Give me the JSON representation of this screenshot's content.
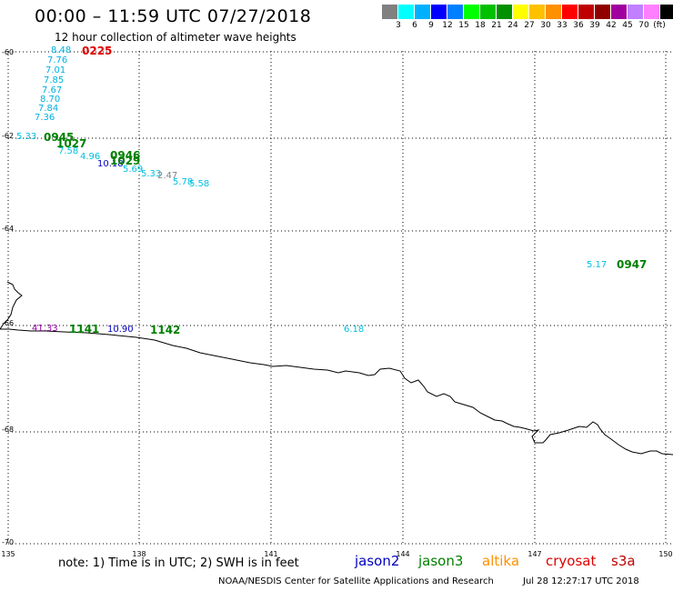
{
  "title": "00:00 – 11:59 UTC 07/27/2018",
  "subtitle": "12 hour collection of altimeter wave heights",
  "legend": {
    "unit": "(ft)",
    "colors": [
      "#808080",
      "#00ffff",
      "#00b0ff",
      "#0000ff",
      "#0080ff",
      "#00ff00",
      "#00c000",
      "#009000",
      "#ffff00",
      "#ffc000",
      "#ff9000",
      "#ff0000",
      "#c00000",
      "#900000",
      "#a000a0",
      "#c080ff",
      "#ff80ff",
      "#000000"
    ],
    "labels": [
      "3",
      "6",
      "9",
      "12",
      "15",
      "18",
      "21",
      "24",
      "27",
      "30",
      "33",
      "36",
      "39",
      "42",
      "45",
      "70"
    ]
  },
  "latitudes": [
    "-60",
    "-62",
    "-64",
    "-66",
    "-68",
    "-70"
  ],
  "longitudes": [
    "135",
    "138",
    "141",
    "144",
    "147",
    "150"
  ],
  "observations": [
    {
      "text": "8.48",
      "color": "#00b0e0"
    },
    {
      "text": "7.76",
      "color": "#00b0e0"
    },
    {
      "text": "7.01",
      "color": "#00b0e0"
    },
    {
      "text": "7.85",
      "color": "#00b0e0"
    },
    {
      "text": "7.67",
      "color": "#00b0e0"
    },
    {
      "text": "8.70",
      "color": "#00b0e0"
    },
    {
      "text": "7.84",
      "color": "#00b0e0"
    },
    {
      "text": "7.36",
      "color": "#00b0e0"
    },
    {
      "text": "5.33",
      "color": "#00c0e0"
    },
    {
      "text": "5.78",
      "color": "#00c0e0"
    },
    {
      "text": "5.58",
      "color": "#00c0e0"
    },
    {
      "text": "5.33",
      "color": "#00c0e0"
    },
    {
      "text": "2.47",
      "color": "#808080"
    },
    {
      "text": "10.18",
      "color": "#0000c0"
    },
    {
      "text": "4.96",
      "color": "#00c0e0"
    },
    {
      "text": "5.69",
      "color": "#00c0e0"
    },
    {
      "text": "7.58",
      "color": "#00c0e0"
    },
    {
      "text": "41.33",
      "color": "#9000a0"
    },
    {
      "text": "10.90",
      "color": "#0000c0"
    },
    {
      "text": "5.17",
      "color": "#00c0e0"
    },
    {
      "text": "6.18",
      "color": "#00c0e0"
    }
  ],
  "times": [
    {
      "text": "0225",
      "color": "#e00000"
    },
    {
      "text": "0945",
      "color": "#008000"
    },
    {
      "text": "1027",
      "color": "#008000"
    },
    {
      "text": "0946",
      "color": "#008000"
    },
    {
      "text": "1029",
      "color": "#008000"
    },
    {
      "text": "1141",
      "color": "#008000"
    },
    {
      "text": "1142",
      "color": "#008000"
    },
    {
      "text": "0947",
      "color": "#008000"
    }
  ],
  "note": "note:  1) Time is in UTC;  2) SWH is in feet",
  "satellites": [
    {
      "name": "jason2",
      "color": "#0000c0"
    },
    {
      "name": "jason3",
      "color": "#008000"
    },
    {
      "name": "altika",
      "color": "#ff9000"
    },
    {
      "name": "cryosat",
      "color": "#e00000"
    },
    {
      "name": "s3a",
      "color": "#c00000"
    }
  ],
  "footer": {
    "credit": "NOAA/NESDIS Center for Satellite Applications and Research",
    "timestamp": "Jul 28 12:27:17 UTC 2018"
  }
}
